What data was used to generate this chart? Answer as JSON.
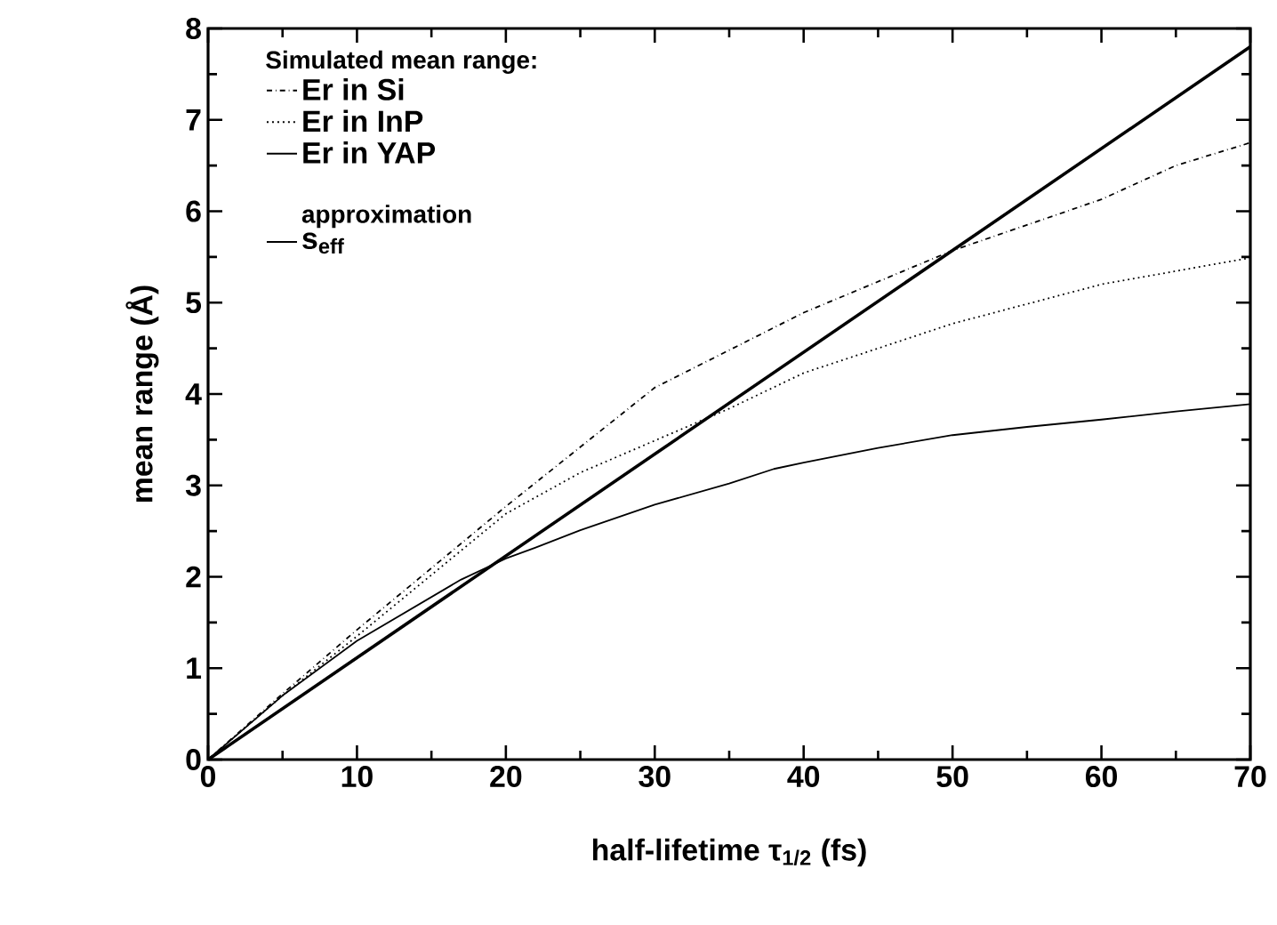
{
  "chart_data": {
    "type": "line",
    "xlabel": "half-lifetime  τ$_{1/2}$ (fs)",
    "ylabel": "mean range (Å)",
    "legend_title": "Simulated mean range:",
    "legend": "top left",
    "annotations": [
      "approximation"
    ],
    "xlim": [
      0,
      70
    ],
    "ylim": [
      0,
      8
    ],
    "xticks": [
      0,
      10,
      20,
      30,
      40,
      50,
      60,
      70
    ],
    "yticks": [
      0,
      1,
      2,
      3,
      4,
      5,
      6,
      7,
      8
    ],
    "grid": false,
    "marker": "none",
    "series": [
      {
        "name": "Er in Si",
        "color": "#000000",
        "line_style": "dashdot",
        "x": [
          0,
          5,
          10,
          20,
          30,
          40,
          50,
          60,
          65,
          70
        ],
        "values": [
          0,
          0.72,
          1.42,
          2.77,
          4.07,
          4.89,
          5.57,
          6.13,
          6.5,
          6.75
        ]
      },
      {
        "name": "Er in InP",
        "color": "#000000",
        "line_style": "dotted",
        "x": [
          0,
          5,
          10,
          20,
          25,
          30,
          35,
          40,
          50,
          60,
          70
        ],
        "values": [
          0,
          0.7,
          1.35,
          2.69,
          3.14,
          3.49,
          3.84,
          4.23,
          4.77,
          5.2,
          5.49
        ]
      },
      {
        "name": "Er in YAP",
        "color": "#000000",
        "line_style": "solid",
        "x": [
          0,
          5,
          10,
          17,
          20,
          22,
          25,
          30,
          35,
          38,
          40,
          45,
          50,
          55,
          60,
          65,
          70
        ],
        "values": [
          0,
          0.7,
          1.3,
          1.97,
          2.2,
          2.32,
          2.51,
          2.79,
          3.02,
          3.18,
          3.25,
          3.41,
          3.55,
          3.64,
          3.72,
          3.81,
          3.89
        ]
      },
      {
        "name": "s$_{eff}$",
        "color": "#000000",
        "line_style": "solid",
        "x": [
          0,
          70
        ],
        "values": [
          0,
          7.8
        ]
      }
    ]
  }
}
